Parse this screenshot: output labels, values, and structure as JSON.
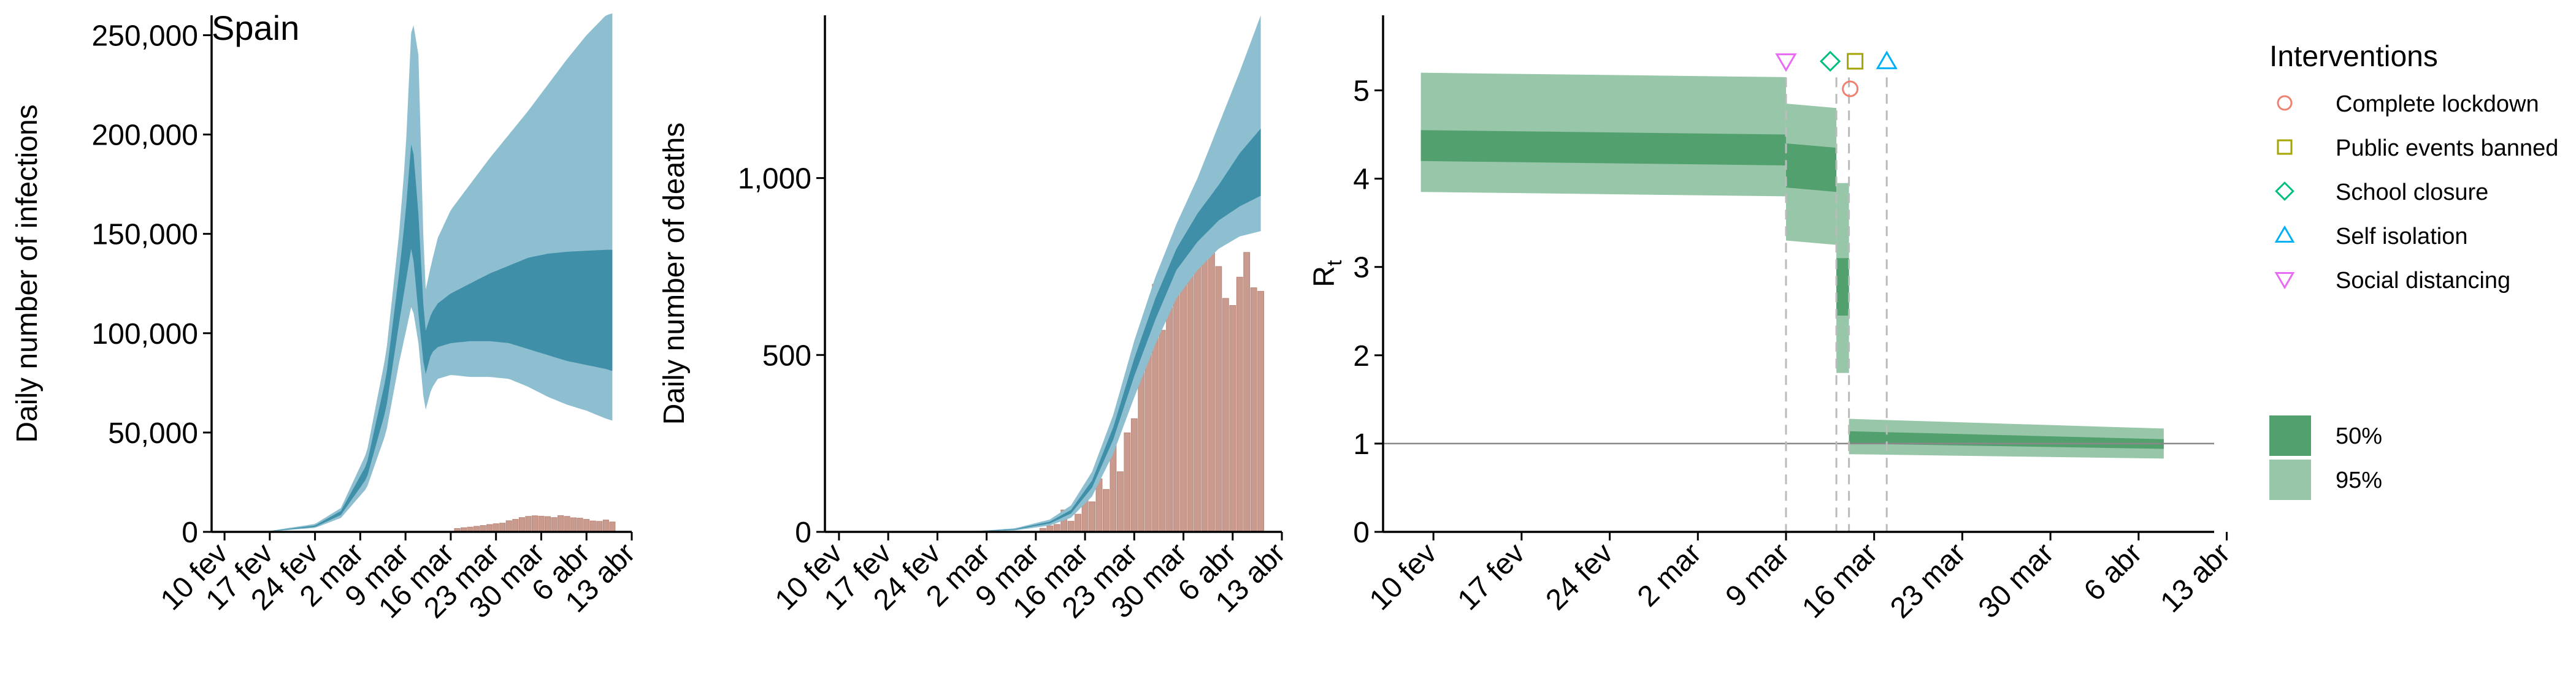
{
  "title": "Spain",
  "colors": {
    "blue_light": "#8ebfd0",
    "blue_dark": "#3f8fa9",
    "bar": "#c99a8e",
    "bar_stroke": "#b98678",
    "green_light": "#97c7a8",
    "green_dark": "#53a06f",
    "axis": "#000000",
    "dashed": "#bbbbbb",
    "hline": "#888888",
    "icon_lockdown": "#f08070",
    "icon_events": "#a3a500",
    "icon_school": "#00bf7d",
    "icon_isolation": "#00b0f6",
    "icon_distancing": "#e76bf3"
  },
  "date_ticks": [
    "10 fev",
    "17 fev",
    "24 fev",
    "2 mar",
    "9 mar",
    "16 mar",
    "23 mar",
    "30 mar",
    "6 abr",
    "13 abr"
  ],
  "legend": {
    "title": "Interventions",
    "items": [
      {
        "label": "Complete lockdown",
        "icon": "circle-icon",
        "color_key": "icon_lockdown"
      },
      {
        "label": "Public events banned",
        "icon": "square-icon",
        "color_key": "icon_events"
      },
      {
        "label": "School closure",
        "icon": "diamond-icon",
        "color_key": "icon_school"
      },
      {
        "label": "Self isolation",
        "icon": "triangle-up-icon",
        "color_key": "icon_isolation"
      },
      {
        "label": "Social distancing",
        "icon": "triangle-down-icon",
        "color_key": "icon_distancing"
      }
    ],
    "bands": [
      {
        "label": "50%",
        "color_key": "green_dark"
      },
      {
        "label": "95%",
        "color_key": "green_light"
      }
    ]
  },
  "chart_data": [
    {
      "id": "infections",
      "type": "area",
      "title": "Spain",
      "xlabel": "",
      "ylabel": "Daily number of infections",
      "xlim": [
        -2,
        63
      ],
      "ylim": [
        0,
        260000
      ],
      "yticks": [
        0,
        50000,
        100000,
        150000,
        200000,
        250000
      ],
      "ytick_labels": [
        "0",
        "50,000",
        "100,000",
        "150,000",
        "200,000",
        "250,000"
      ],
      "x_day0": "10 fev",
      "bands": {
        "x": [
          0,
          7,
          14,
          18,
          22,
          25,
          27,
          28,
          29,
          30,
          31,
          32,
          33,
          35,
          38,
          41,
          44,
          47,
          50,
          53,
          56,
          59,
          60
        ],
        "lo95": [
          0,
          200,
          2000,
          7000,
          22000,
          50000,
          85000,
          100000,
          115000,
          95000,
          60000,
          72000,
          77000,
          79000,
          78000,
          78000,
          77000,
          73000,
          68000,
          64000,
          61000,
          57000,
          56000
        ],
        "hi95": [
          0,
          500,
          4000,
          12000,
          40000,
          90000,
          150000,
          190000,
          260000,
          240000,
          120000,
          135000,
          148000,
          162000,
          175000,
          188000,
          200000,
          212000,
          225000,
          238000,
          250000,
          260000,
          261000
        ],
        "lo50": [
          0,
          300,
          2500,
          8500,
          27000,
          62000,
          105000,
          125000,
          145000,
          110000,
          78000,
          90000,
          93000,
          95000,
          96000,
          96000,
          95000,
          92000,
          89000,
          86000,
          84000,
          82000,
          81000
        ],
        "hi50": [
          0,
          400,
          3200,
          10500,
          34000,
          78000,
          130000,
          160000,
          200000,
          160000,
          100000,
          110000,
          115000,
          120000,
          125000,
          130000,
          134000,
          138000,
          140000,
          141000,
          141500,
          142000,
          142000
        ]
      },
      "bars": {
        "x": [
          36,
          37,
          38,
          39,
          40,
          41,
          42,
          43,
          44,
          45,
          46,
          47,
          48,
          49,
          50,
          51,
          52,
          53,
          54,
          55,
          56,
          57,
          58,
          59,
          60
        ],
        "values": [
          1700,
          2100,
          2400,
          2800,
          3200,
          3700,
          4100,
          4400,
          5600,
          6300,
          7200,
          7800,
          8100,
          7900,
          7700,
          7200,
          8200,
          7800,
          7100,
          6900,
          6300,
          5500,
          5300,
          6000,
          5000
        ]
      }
    },
    {
      "id": "deaths",
      "type": "area",
      "title": "",
      "xlabel": "",
      "ylabel": "Daily number of deaths",
      "xlim": [
        -2,
        63
      ],
      "ylim": [
        0,
        1460
      ],
      "yticks": [
        0,
        500,
        1000
      ],
      "ytick_labels": [
        "0",
        "500",
        "1,000"
      ],
      "x_day0": "10 fev",
      "bands": {
        "x": [
          0,
          10,
          20,
          25,
          30,
          33,
          36,
          39,
          42,
          45,
          48,
          51,
          54,
          57,
          60
        ],
        "lo95": [
          0,
          0,
          1,
          4,
          18,
          40,
          100,
          220,
          380,
          530,
          660,
          740,
          800,
          835,
          850
        ],
        "hi95": [
          0,
          0,
          3,
          10,
          35,
          75,
          170,
          330,
          540,
          720,
          870,
          1000,
          1150,
          1300,
          1460
        ],
        "lo50": [
          0,
          0,
          2,
          6,
          24,
          52,
          125,
          260,
          440,
          600,
          740,
          820,
          880,
          920,
          950
        ],
        "hi50": [
          0,
          0,
          2,
          8,
          29,
          62,
          145,
          295,
          490,
          660,
          800,
          900,
          980,
          1070,
          1140
        ]
      },
      "bars": {
        "x": [
          29,
          30,
          31,
          32,
          33,
          34,
          35,
          36,
          37,
          38,
          39,
          40,
          41,
          42,
          43,
          44,
          45,
          46,
          47,
          48,
          49,
          50,
          51,
          52,
          53,
          54,
          55,
          56,
          57,
          58,
          59,
          60
        ],
        "values": [
          10,
          17,
          21,
          62,
          30,
          50,
          105,
          85,
          150,
          120,
          250,
          170,
          280,
          320,
          460,
          520,
          700,
          570,
          750,
          820,
          830,
          810,
          850,
          920,
          810,
          750,
          660,
          640,
          720,
          790,
          690,
          680
        ]
      }
    },
    {
      "id": "rt",
      "type": "area",
      "title": "",
      "xlabel": "",
      "ylabel": "R",
      "ylabel_subscript": "t",
      "xlim": [
        -4,
        62
      ],
      "ylim": [
        0,
        5.85
      ],
      "yticks": [
        0,
        1,
        2,
        3,
        4,
        5
      ],
      "ytick_labels": [
        "0",
        "1",
        "2",
        "3",
        "4",
        "5"
      ],
      "x_day0": "10 fev",
      "hline": 1,
      "steps": [
        {
          "x0": -1,
          "x1": 28,
          "lo95": [
            3.85,
            3.8
          ],
          "hi95": [
            5.2,
            5.15
          ],
          "lo50": [
            4.2,
            4.15
          ],
          "hi50": [
            4.55,
            4.5
          ]
        },
        {
          "x0": 28,
          "x1": 32,
          "lo95": [
            3.3,
            3.25
          ],
          "hi95": [
            4.85,
            4.8
          ],
          "lo50": [
            3.9,
            3.85
          ],
          "hi50": [
            4.4,
            4.35
          ]
        },
        {
          "x0": 32,
          "x1": 33,
          "lo95": [
            1.8,
            1.8
          ],
          "hi95": [
            3.95,
            3.95
          ],
          "lo50": [
            2.45,
            2.45
          ],
          "hi50": [
            3.1,
            3.1
          ]
        },
        {
          "x0": 33,
          "x1": 58,
          "lo95": [
            0.88,
            0.83
          ],
          "hi95": [
            1.28,
            1.17
          ],
          "lo50": [
            1.0,
            0.94
          ],
          "hi50": [
            1.14,
            1.05
          ]
        }
      ],
      "interventions": [
        {
          "name": "Social distancing",
          "x": 28,
          "marker": "triangle-down",
          "color_key": "icon_distancing"
        },
        {
          "name": "School closure",
          "x": 32,
          "marker": "diamond",
          "color_key": "icon_school"
        },
        {
          "name": "Public events banned",
          "x": 33,
          "marker": "square",
          "color_key": "icon_events"
        },
        {
          "name": "Complete lockdown",
          "x": 33,
          "marker": "circle",
          "color_key": "icon_lockdown"
        },
        {
          "name": "Self isolation",
          "x": 36,
          "marker": "triangle-up",
          "color_key": "icon_isolation"
        }
      ]
    }
  ]
}
